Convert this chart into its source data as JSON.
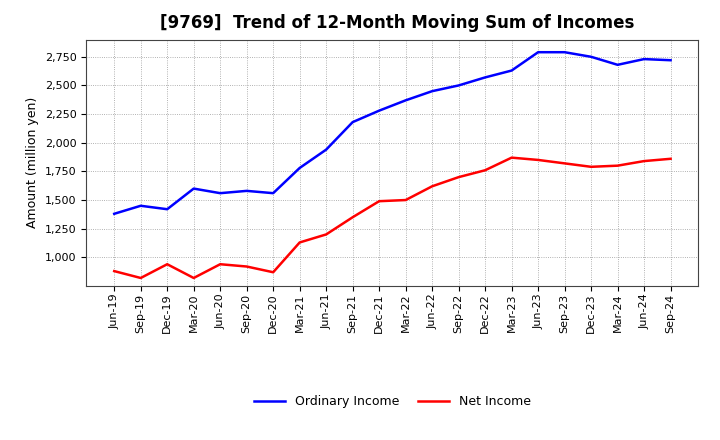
{
  "title": "[9769]  Trend of 12-Month Moving Sum of Incomes",
  "ylabel": "Amount (million yen)",
  "x_labels": [
    "Jun-19",
    "Sep-19",
    "Dec-19",
    "Mar-20",
    "Jun-20",
    "Sep-20",
    "Dec-20",
    "Mar-21",
    "Jun-21",
    "Sep-21",
    "Dec-21",
    "Mar-22",
    "Jun-22",
    "Sep-22",
    "Dec-22",
    "Mar-23",
    "Jun-23",
    "Sep-23",
    "Dec-23",
    "Mar-24",
    "Jun-24",
    "Sep-24"
  ],
  "ordinary_income": [
    1380,
    1450,
    1420,
    1600,
    1560,
    1580,
    1560,
    1780,
    1940,
    2180,
    2280,
    2370,
    2450,
    2500,
    2570,
    2630,
    2790,
    2790,
    2750,
    2680,
    2730,
    2720
  ],
  "net_income": [
    880,
    820,
    940,
    820,
    940,
    920,
    870,
    1130,
    1200,
    1350,
    1490,
    1500,
    1620,
    1700,
    1760,
    1870,
    1850,
    1820,
    1790,
    1800,
    1840,
    1860
  ],
  "ordinary_color": "#0000ff",
  "net_color": "#ff0000",
  "background_color": "#ffffff",
  "grid_color": "#aaaaaa",
  "ylim_min": 750,
  "ylim_max": 2900,
  "yticks": [
    1000,
    1250,
    1500,
    1750,
    2000,
    2250,
    2500,
    2750
  ],
  "title_fontsize": 12,
  "axis_fontsize": 9,
  "tick_fontsize": 8,
  "legend_labels": [
    "Ordinary Income",
    "Net Income"
  ],
  "line_width": 1.8
}
